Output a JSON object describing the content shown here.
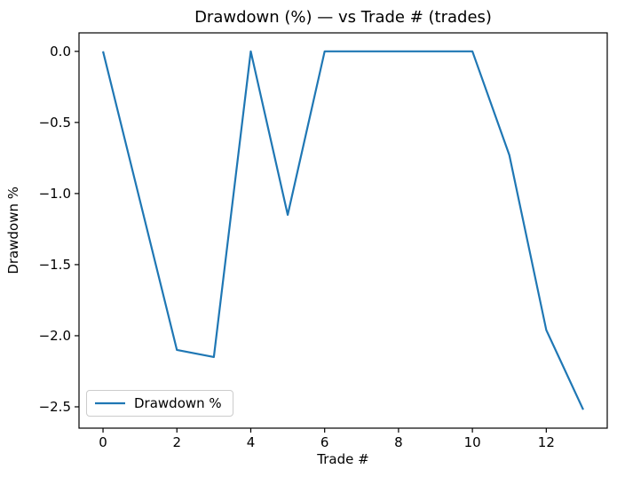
{
  "chart_data": {
    "type": "line",
    "title": "Drawdown (%) — vs Trade # (trades)",
    "xlabel": "Trade #",
    "ylabel": "Drawdown %",
    "x": [
      0,
      1,
      2,
      3,
      4,
      5,
      6,
      7,
      8,
      9,
      10,
      11,
      12,
      13
    ],
    "series": [
      {
        "name": "Drawdown %",
        "color": "#1f77b4",
        "values": [
          0.0,
          -1.05,
          -2.1,
          -2.15,
          0.0,
          -1.15,
          0.0,
          0.0,
          0.0,
          0.0,
          0.0,
          -0.73,
          -1.96,
          -2.52
        ]
      }
    ],
    "xlim": [
      -0.65,
      13.65
    ],
    "ylim": [
      -2.65,
      0.13
    ],
    "xticks": [
      0,
      2,
      4,
      6,
      8,
      10,
      12
    ],
    "xtick_labels": [
      "0",
      "2",
      "4",
      "6",
      "8",
      "10",
      "12"
    ],
    "yticks": [
      0.0,
      -0.5,
      -1.0,
      -1.5,
      -2.0,
      -2.5
    ],
    "ytick_labels": [
      "0.0",
      "−0.5",
      "−1.0",
      "−1.5",
      "−2.0",
      "−2.5"
    ],
    "grid": false,
    "legend": {
      "position": "lower left",
      "entries": [
        {
          "label": "Drawdown %",
          "color": "#1f77b4"
        }
      ]
    },
    "colors": {
      "line": "#1f77b4",
      "spine": "#000000",
      "text": "#000000",
      "legend_border": "#cccccc"
    }
  }
}
